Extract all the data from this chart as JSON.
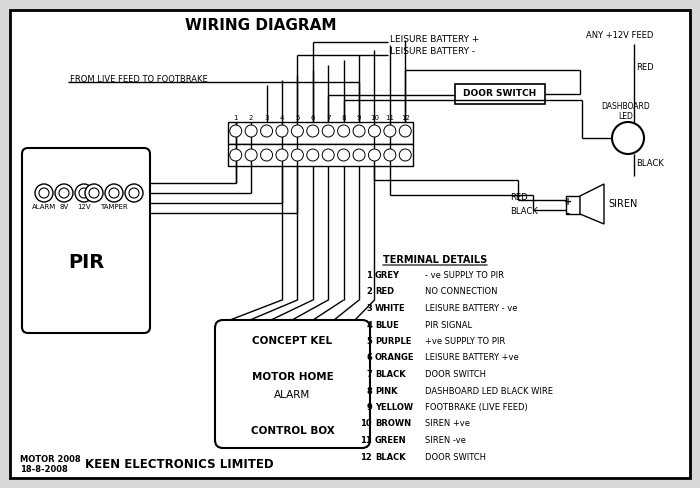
{
  "title": "WIRING DIAGRAM",
  "bg_color": "#d8d8d8",
  "border_color": "#111111",
  "text_color": "#111111",
  "footer_left1": "MOTOR 2008",
  "footer_left2": "18-8-2008",
  "footer_company": "KEEN ELECTRONICS LIMITED",
  "terminal_header": "TERMINAL DETAILS",
  "terminals": [
    {
      "num": "1",
      "color": "GREY",
      "desc": "- ve SUPPLY TO PIR"
    },
    {
      "num": "2",
      "color": "RED",
      "desc": "NO CONNECTION"
    },
    {
      "num": "3",
      "color": "WHITE",
      "desc": "LEISURE BATTERY - ve"
    },
    {
      "num": "4",
      "color": "BLUE",
      "desc": "PIR SIGNAL"
    },
    {
      "num": "5",
      "color": "PURPLE",
      "desc": "+ve SUPPLY TO PIR"
    },
    {
      "num": "6",
      "color": "ORANGE",
      "desc": "LEISURE BATTERY +ve"
    },
    {
      "num": "7",
      "color": "BLACK",
      "desc": "DOOR SWITCH"
    },
    {
      "num": "8",
      "color": "PINK",
      "desc": "DASHBOARD LED BLACK WIRE"
    },
    {
      "num": "9",
      "color": "YELLOW",
      "desc": "FOOTBRAKE (LIVE FEED)"
    },
    {
      "num": "10",
      "color": "BROWN",
      "desc": "SIREN +ve"
    },
    {
      "num": "11",
      "color": "GREEN",
      "desc": "SIREN -ve"
    },
    {
      "num": "12",
      "color": "BLACK",
      "desc": "DOOR SWITCH"
    }
  ],
  "pir_label": "PIR",
  "control_box_lines": [
    "CONCEPT KEL",
    "",
    "MOTOR HOME",
    "ALARM",
    "",
    "CONTROL BOX"
  ],
  "labels": {
    "leisure_battery_pos": "LEISURE BATTERY +",
    "leisure_battery_neg": "LEISURE BATTERY -",
    "from_live": "FROM LIVE FEED TO FOOTBRAKE",
    "door_switch": "DOOR SWITCH",
    "any_12v": "ANY +12V FEED",
    "red_top": "RED",
    "black_top": "BLACK",
    "dashboard_led": "DASHBOARD\nLED",
    "red_siren": "RED",
    "black_siren": "BLACK",
    "siren": "SIREN"
  }
}
